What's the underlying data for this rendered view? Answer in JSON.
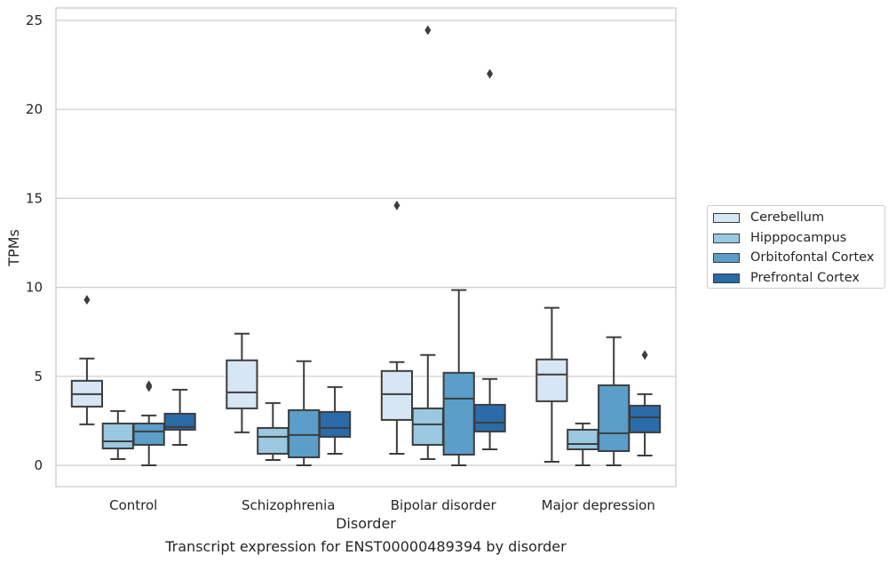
{
  "chart_data": {
    "type": "box",
    "title": "",
    "xlabel": "Disorder",
    "ylabel": "TPMs",
    "caption": "Transcript expression for ENST00000489394 by disorder",
    "ylim": [
      -1.1,
      25.7
    ],
    "yticks": [
      0,
      5,
      10,
      15,
      20,
      25
    ],
    "grid": "horizontal",
    "legend_placement": "right",
    "categories": [
      "Control",
      "Schizophrenia",
      "Bipolar disorder",
      "Major depression"
    ],
    "series": [
      {
        "name": "Cerebellum",
        "color": "#d6e6f4",
        "boxes": [
          {
            "whisker_low": 2.3,
            "q1": 3.3,
            "median": 4.0,
            "q3": 4.75,
            "whisker_high": 6.0,
            "outliers": [
              9.3
            ]
          },
          {
            "whisker_low": 1.85,
            "q1": 3.2,
            "median": 4.1,
            "q3": 5.9,
            "whisker_high": 7.4,
            "outliers": []
          },
          {
            "whisker_low": 0.65,
            "q1": 2.55,
            "median": 4.0,
            "q3": 5.3,
            "whisker_high": 5.8,
            "outliers": [
              14.6
            ]
          },
          {
            "whisker_low": 0.2,
            "q1": 3.6,
            "median": 5.1,
            "q3": 5.95,
            "whisker_high": 8.85,
            "outliers": []
          }
        ]
      },
      {
        "name": "Hipppocampus",
        "color": "#9ac8e1",
        "boxes": [
          {
            "whisker_low": 0.35,
            "q1": 0.95,
            "median": 1.35,
            "q3": 2.35,
            "whisker_high": 3.05,
            "outliers": []
          },
          {
            "whisker_low": 0.3,
            "q1": 0.65,
            "median": 1.6,
            "q3": 2.1,
            "whisker_high": 3.5,
            "outliers": []
          },
          {
            "whisker_low": 0.35,
            "q1": 1.15,
            "median": 2.3,
            "q3": 3.2,
            "whisker_high": 6.2,
            "outliers": [
              24.45
            ]
          },
          {
            "whisker_low": 0.0,
            "q1": 0.9,
            "median": 1.2,
            "q3": 2.0,
            "whisker_high": 2.35,
            "outliers": []
          }
        ]
      },
      {
        "name": "Orbitofontal Cortex",
        "color": "#5a9ec9",
        "boxes": [
          {
            "whisker_low": 0.0,
            "q1": 1.15,
            "median": 1.9,
            "q3": 2.35,
            "whisker_high": 2.8,
            "outliers": [
              4.4,
              4.5
            ]
          },
          {
            "whisker_low": 0.0,
            "q1": 0.45,
            "median": 1.7,
            "q3": 3.1,
            "whisker_high": 5.85,
            "outliers": []
          },
          {
            "whisker_low": 0.0,
            "q1": 0.6,
            "median": 3.75,
            "q3": 5.2,
            "whisker_high": 9.85,
            "outliers": []
          },
          {
            "whisker_low": 0.0,
            "q1": 0.8,
            "median": 1.8,
            "q3": 4.5,
            "whisker_high": 7.2,
            "outliers": []
          }
        ]
      },
      {
        "name": "Prefrontal Cortex",
        "color": "#2a6ba9",
        "boxes": [
          {
            "whisker_low": 1.15,
            "q1": 2.0,
            "median": 2.15,
            "q3": 2.9,
            "whisker_high": 4.25,
            "outliers": []
          },
          {
            "whisker_low": 0.65,
            "q1": 1.6,
            "median": 2.1,
            "q3": 3.0,
            "whisker_high": 4.4,
            "outliers": []
          },
          {
            "whisker_low": 0.9,
            "q1": 1.9,
            "median": 2.4,
            "q3": 3.4,
            "whisker_high": 4.85,
            "outliers": [
              22.0
            ]
          },
          {
            "whisker_low": 0.55,
            "q1": 1.85,
            "median": 2.7,
            "q3": 3.35,
            "whisker_high": 4.0,
            "outliers": [
              6.2
            ]
          }
        ]
      }
    ]
  }
}
